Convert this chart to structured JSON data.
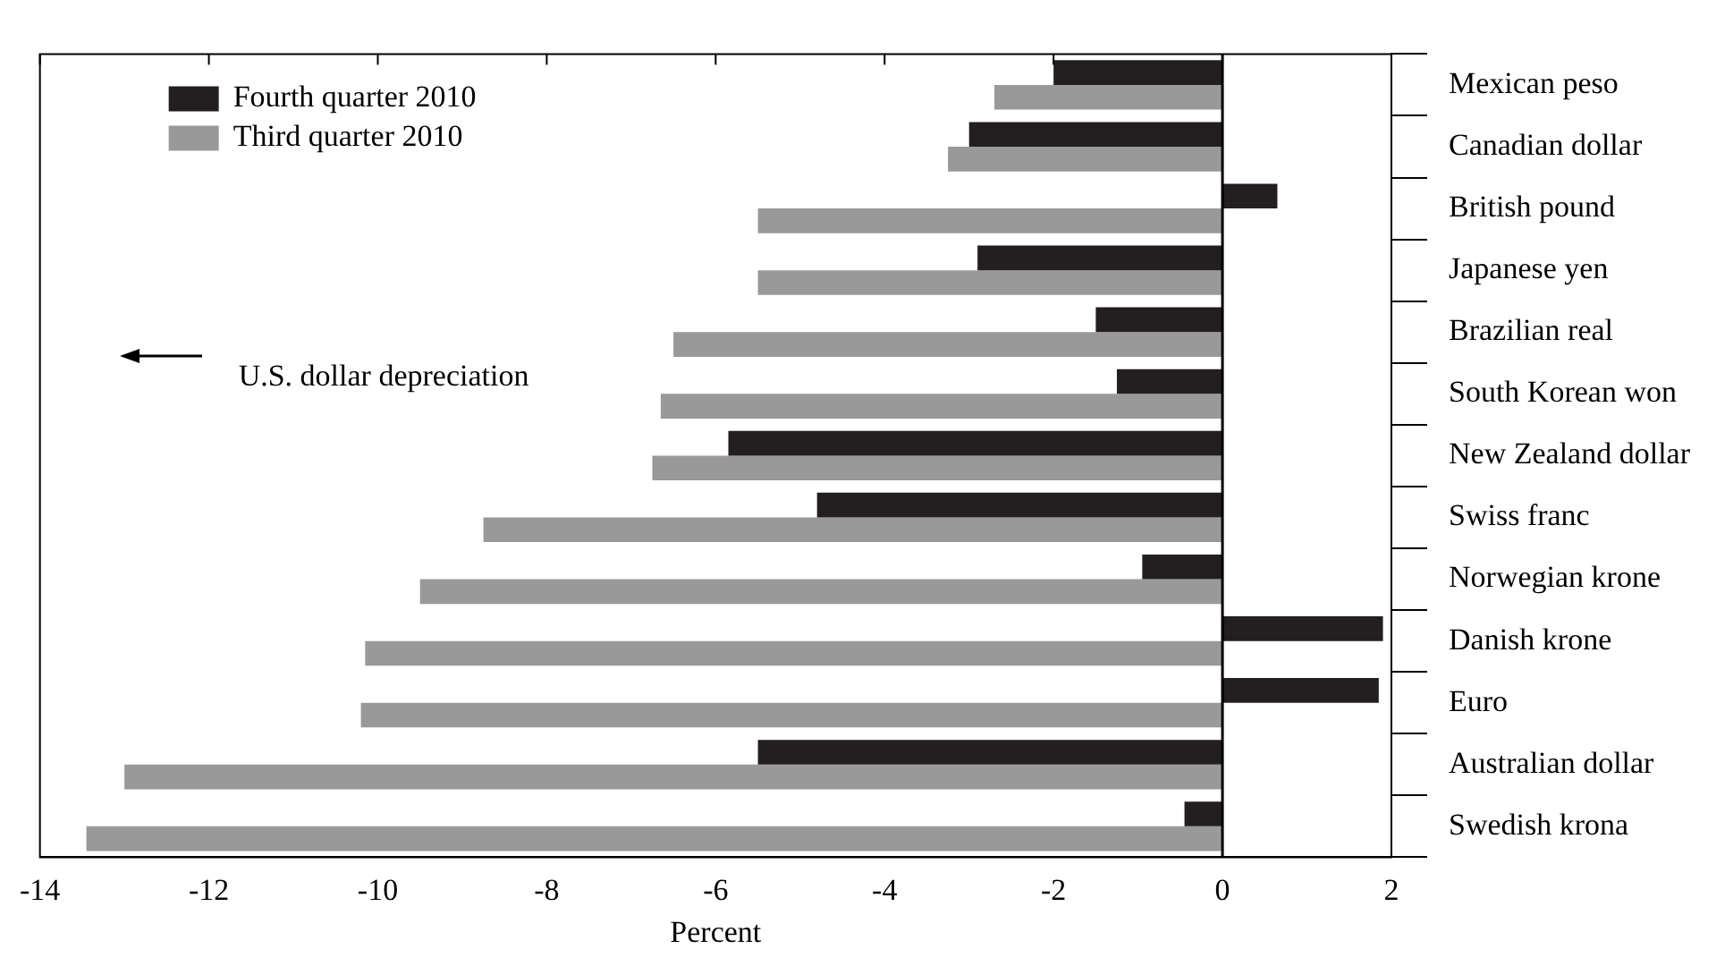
{
  "chart_data": {
    "type": "bar",
    "orientation": "horizontal",
    "xlabel": "Percent",
    "categories": [
      "Mexican peso",
      "Canadian dollar",
      "British pound",
      "Japanese yen",
      "Brazilian real",
      "South Korean won",
      "New Zealand dollar",
      "Swiss franc",
      "Norwegian krone",
      "Danish krone",
      "Euro",
      "Australian dollar",
      "Swedish krona"
    ],
    "series": [
      {
        "name": "Fourth quarter 2010",
        "color": "#231f20",
        "values": [
          -2.0,
          -3.0,
          0.65,
          -2.9,
          -1.5,
          -1.25,
          -5.85,
          -4.8,
          -0.95,
          1.9,
          1.85,
          -5.5,
          -0.45
        ]
      },
      {
        "name": "Third quarter 2010",
        "color": "#999999",
        "values": [
          -2.7,
          -3.25,
          -5.5,
          -5.5,
          -6.5,
          -6.65,
          -6.75,
          -8.75,
          -9.5,
          -10.15,
          -10.2,
          -13.0,
          -13.45
        ]
      }
    ],
    "xlim": [
      -14,
      2
    ],
    "xticks": [
      -14,
      -12,
      -10,
      -8,
      -6,
      -4,
      -2,
      0,
      2
    ],
    "ref_lines": [
      {
        "axis": "x",
        "value": 0
      }
    ],
    "annotations": [
      {
        "text": "U.S. dollar depreciation"
      }
    ],
    "legend": "top left",
    "grid": false
  }
}
